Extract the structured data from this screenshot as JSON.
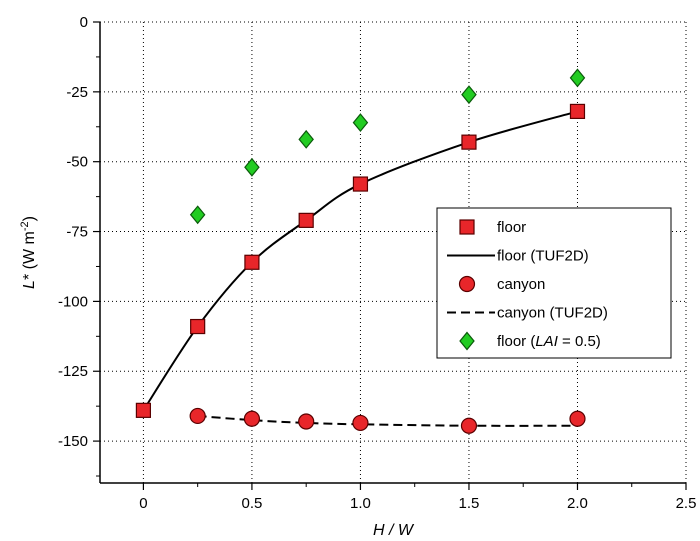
{
  "chart_data": {
    "type": "scatter",
    "xlabel": "H / W",
    "ylabel": "L* (W m-2)",
    "xlim": [
      -0.2,
      2.5
    ],
    "ylim": [
      -165,
      0
    ],
    "xticks": [
      0,
      0.5,
      1.0,
      1.5,
      2.0,
      2.5
    ],
    "xtick_labels": [
      "0",
      "0.5",
      "1.0",
      "1.5",
      "2.0",
      "2.5"
    ],
    "yticks": [
      0,
      -25,
      -50,
      -75,
      -100,
      -125,
      -150
    ],
    "ytick_labels": [
      "0",
      "-25",
      "-50",
      "-75",
      "-100",
      "-125",
      "-150"
    ],
    "grid": true,
    "legend_position": "right",
    "series": [
      {
        "name": "floor",
        "kind": "markers",
        "marker": "square",
        "color": "#e8262a",
        "x": [
          0,
          0.25,
          0.5,
          0.75,
          1.0,
          1.5,
          2.0
        ],
        "y": [
          -139,
          -109,
          -86,
          -71,
          -58,
          -43,
          -32
        ]
      },
      {
        "name": "floor (TUF2D)",
        "kind": "line",
        "dash": "solid",
        "color": "#000000",
        "x": [
          0,
          0.25,
          0.5,
          0.75,
          1.0,
          1.5,
          2.0
        ],
        "y": [
          -139,
          -109,
          -86,
          -71,
          -58,
          -43,
          -32
        ]
      },
      {
        "name": "canyon",
        "kind": "markers",
        "marker": "circle",
        "color": "#e8262a",
        "x": [
          0.25,
          0.5,
          0.75,
          1.0,
          1.5,
          2.0
        ],
        "y": [
          -141,
          -142,
          -143,
          -143.5,
          -144.5,
          -142
        ]
      },
      {
        "name": "canyon (TUF2D)",
        "kind": "line",
        "dash": "dashed",
        "color": "#000000",
        "x": [
          0.25,
          0.5,
          0.75,
          1.0,
          1.5,
          2.0
        ],
        "y": [
          -141,
          -142.5,
          -143.5,
          -144,
          -144.5,
          -144.5
        ]
      },
      {
        "name": "floor (LAI = 0.5)",
        "kind": "markers",
        "marker": "diamond",
        "color": "#22cc22",
        "x": [
          0.25,
          0.5,
          0.75,
          1.0,
          1.5,
          2.0
        ],
        "y": [
          -69,
          -52,
          -42,
          -36,
          -26,
          -20
        ]
      }
    ],
    "legend": [
      {
        "series": 0,
        "prefix": "floor",
        "italic": "",
        "suffix": ""
      },
      {
        "series": 1,
        "prefix": "floor (TUF2D)",
        "italic": "",
        "suffix": ""
      },
      {
        "series": 2,
        "prefix": "canyon",
        "italic": "",
        "suffix": ""
      },
      {
        "series": 3,
        "prefix": "canyon (TUF2D)",
        "italic": "",
        "suffix": ""
      },
      {
        "series": 4,
        "prefix": "floor (",
        "italic": "LAI",
        "suffix": " = 0.5)"
      }
    ],
    "ylabel_parts": {
      "italic": "L",
      "rest": "* (W m",
      "sup": "-2",
      "close": ")"
    },
    "xlabel_parts": {
      "italic": "H / W"
    }
  }
}
